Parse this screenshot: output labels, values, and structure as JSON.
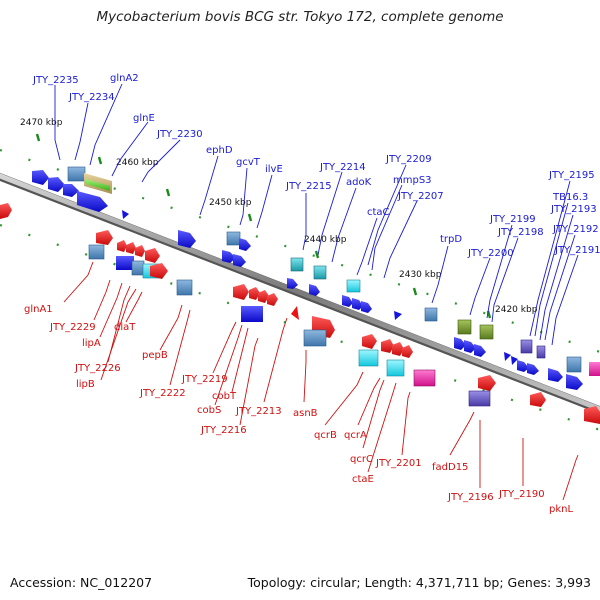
{
  "title": "Mycobacterium bovis BCG str. Tokyo 172, complete genome",
  "accession": "Accession: NC_012207",
  "summary": "Topology: circular; Length: 4,371,711 bp; Genes: 3,993",
  "colors": {
    "forward_label": "#1a1ad6",
    "reverse_label": "#d01010",
    "forward_gene": "#1515e0",
    "reverse_gene": "#ee1111",
    "tick": "#1d8a1d",
    "backbone": "#8a8a8a"
  },
  "scale_labels": [
    "2470 kbp",
    "2460 kbp",
    "2450 kbp",
    "2440 kbp",
    "2430 kbp",
    "2420 kbp"
  ],
  "genes_top": [
    "JTY_2235",
    "JTY_2234",
    "glnA2",
    "glnE",
    "JTY_2230",
    "ephD",
    "gcvT",
    "ilvE",
    "JTY_2214",
    "JTY_2215",
    "adoK",
    "JTY_2209",
    "mmpS3",
    "JTY_2207",
    "ctaC",
    "trpD",
    "JTY_2200",
    "JTY_2199",
    "JTY_2198",
    "JTY_2195",
    "TB16.3",
    "JTY_2193",
    "JTY_2192",
    "JTY_2191"
  ],
  "genes_bottom": [
    "glnA1",
    "JTY_2229",
    "lipA",
    "JTY_2226",
    "lipB",
    "dlaT",
    "pepB",
    "JTY_2222",
    "JTY_2219",
    "cobT",
    "cobS",
    "JTY_2216",
    "JTY_2213",
    "asnB",
    "qcrB",
    "qcrA",
    "qcrC",
    "ctaE",
    "JTY_2201",
    "fadD15",
    "JTY_2196",
    "JTY_2190",
    "pknL"
  ]
}
